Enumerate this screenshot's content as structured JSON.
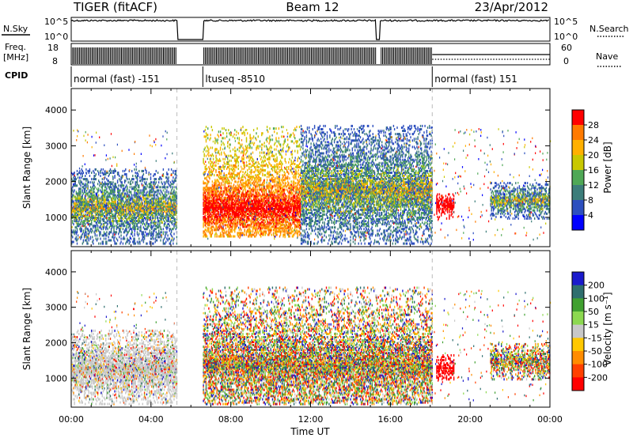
{
  "header": {
    "radar": "TIGER (fitACF)",
    "beam": "Beam 12",
    "date": "23/Apr/2012"
  },
  "status_panels": {
    "nsky_label": "N.Sky",
    "nsky_ticks": [
      "10^5",
      "10^0"
    ],
    "nsearch_label": "N.Search",
    "nsearch_ticks": [
      "10^5",
      "10^0"
    ],
    "freq_label_1": "Freq.",
    "freq_label_2": "[MHz]",
    "freq_ticks": [
      "18",
      "8"
    ],
    "nave_label": "Nave",
    "nave_ticks": [
      "60",
      "0"
    ],
    "cpid_label": "CPID",
    "cpid_segments": [
      {
        "label": "normal (fast) -151",
        "start": 0.0,
        "end": 5.3
      },
      {
        "label": "ltuseq -8510",
        "start": 6.6,
        "end": 18.1
      },
      {
        "label": "normal (fast) 151",
        "start": 18.1,
        "end": 24.0
      }
    ]
  },
  "chart_data": [
    {
      "type": "heatmap",
      "title": "",
      "parameter": "Power",
      "ylabel": "Slant Range [km]",
      "xlabel": "Time UT",
      "xlim": [
        0,
        24
      ],
      "ylim": [
        180,
        4600
      ],
      "yticks": [
        1000,
        2000,
        3000,
        4000
      ],
      "xtick_labels": [
        "00:00",
        "04:00",
        "08:00",
        "12:00",
        "16:00",
        "20:00",
        "00:00"
      ],
      "colorbar": {
        "label": "Power [dB]",
        "ticks": [
          "4",
          "8",
          "12",
          "16",
          "20",
          "24",
          "28"
        ],
        "colors": [
          "#0000ff",
          "#2d4fbf",
          "#3c7d7a",
          "#4fa856",
          "#c8c800",
          "#ffb000",
          "#ff7a00",
          "#ff0000"
        ]
      },
      "regions": [
        {
          "t0": 0.0,
          "t1": 5.3,
          "r0": 300,
          "r1": 2400,
          "peak": 1300,
          "level": "mid-high"
        },
        {
          "t0": 6.6,
          "t1": 11.5,
          "r0": 500,
          "r1": 3600,
          "peak": 1300,
          "level": "high"
        },
        {
          "t0": 11.5,
          "t1": 18.1,
          "r0": 300,
          "r1": 3600,
          "peak": 1800,
          "level": "mixed"
        },
        {
          "t0": 18.3,
          "t1": 19.2,
          "r0": 1000,
          "r1": 1700,
          "peak": 1400,
          "level": "very-high"
        },
        {
          "t0": 21.0,
          "t1": 24.0,
          "r0": 1000,
          "r1": 2000,
          "peak": 1500,
          "level": "mixed"
        }
      ]
    },
    {
      "type": "heatmap",
      "title": "",
      "parameter": "Velocity",
      "ylabel": "Slant Range [km]",
      "xlabel": "Time UT",
      "xlim": [
        0,
        24
      ],
      "ylim": [
        180,
        4600
      ],
      "yticks": [
        1000,
        2000,
        3000,
        4000
      ],
      "xtick_labels": [
        "00:00",
        "04:00",
        "08:00",
        "12:00",
        "16:00",
        "20:00",
        "00:00"
      ],
      "colorbar": {
        "label": "Velocity [m s⁻¹]",
        "ticks": [
          "200",
          "100",
          "50",
          "15",
          "-15",
          "-50",
          "-100",
          "-200"
        ],
        "colors": [
          "#1a1acc",
          "#2e6e6e",
          "#40a030",
          "#8cd850",
          "#c8c8c8",
          "#ffc800",
          "#ff8c00",
          "#ff4000",
          "#ff0000"
        ]
      },
      "regions": [
        {
          "t0": 0.0,
          "t1": 5.3,
          "r0": 300,
          "r1": 2400,
          "peak": 1300,
          "level": "near-zero"
        },
        {
          "t0": 6.6,
          "t1": 18.1,
          "r0": 300,
          "r1": 3600,
          "peak": 1400,
          "level": "mixed"
        },
        {
          "t0": 18.3,
          "t1": 19.2,
          "r0": 1000,
          "r1": 1700,
          "peak": 1300,
          "level": "negative"
        },
        {
          "t0": 21.0,
          "t1": 24.0,
          "r0": 1000,
          "r1": 2000,
          "peak": 1500,
          "level": "mixed"
        }
      ]
    }
  ],
  "xlabel": "Time UT"
}
